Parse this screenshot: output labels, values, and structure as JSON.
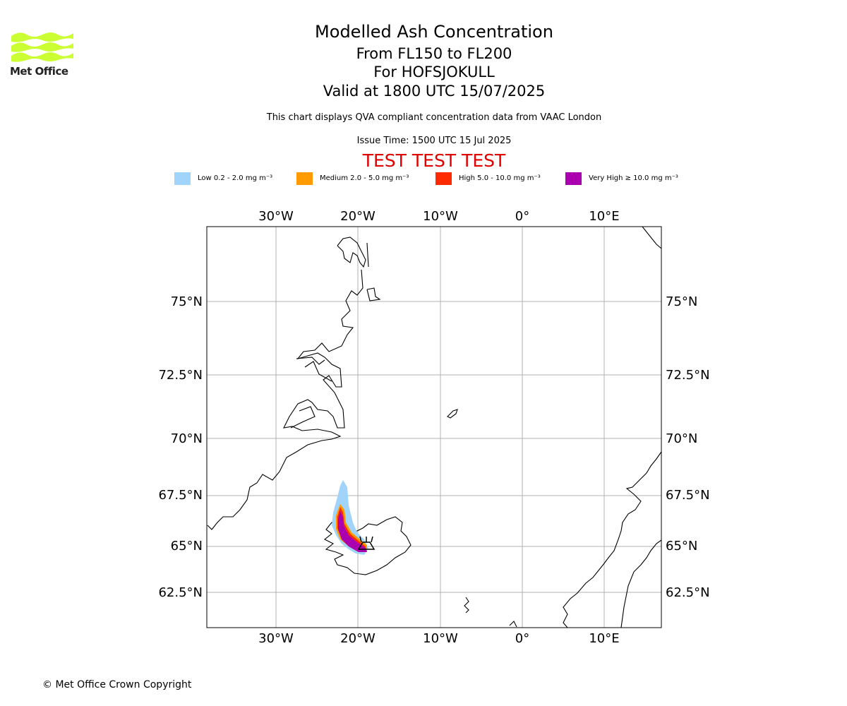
{
  "logo": {
    "text": "Met Office",
    "color": "#ccff33"
  },
  "header": {
    "title": "Modelled Ash Concentration",
    "levels": "From FL150 to FL200",
    "volcano": "For HOFSJOKULL",
    "valid": "Valid at 1800 UTC 15/07/2025",
    "note": "This chart displays QVA compliant concentration data from VAAC London",
    "issue": "Issue Time: 1500 UTC 15 Jul 2025",
    "test_banner": "TEST TEST TEST"
  },
  "legend": [
    {
      "label": "Low 0.2 - 2.0 mg m⁻³",
      "color": "#a0d4fa"
    },
    {
      "label": "Medium 2.0 - 5.0 mg m⁻³",
      "color": "#ff9a00"
    },
    {
      "label": "High 5.0 - 10.0 mg m⁻³",
      "color": "#ff2a00"
    },
    {
      "label": "Very High ≥ 10.0 mg m⁻³",
      "color": "#aa00b0"
    }
  ],
  "map": {
    "lon_ticks": [
      "30°W",
      "20°W",
      "10°W",
      "0°",
      "10°E"
    ],
    "lat_ticks": [
      "75°N",
      "72.5°N",
      "70°N",
      "67.5°N",
      "65°N",
      "62.5°N"
    ],
    "gridline_color": "#b0b0b0",
    "volcano_marker": "triangle-volcano-icon"
  },
  "footer": {
    "copyright": "© Met Office Crown Copyright"
  }
}
